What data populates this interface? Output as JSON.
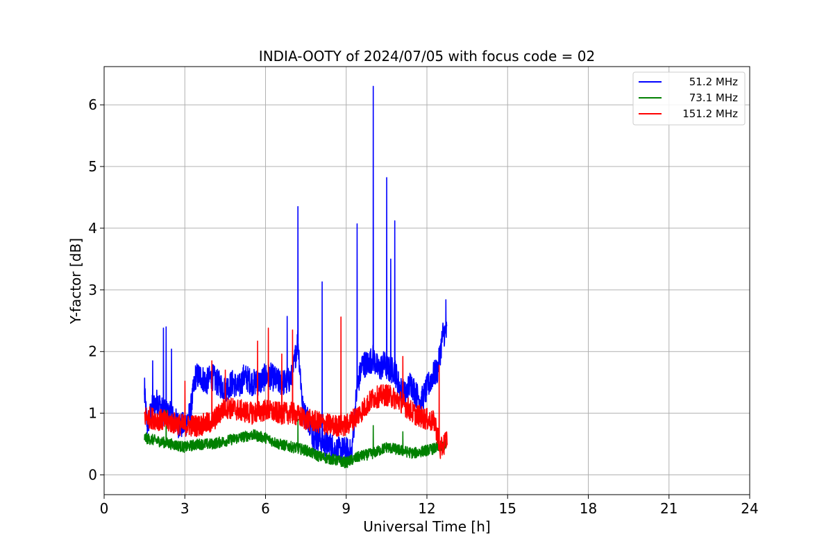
{
  "chart_data": {
    "type": "line",
    "title": "INDIA-OOTY of 2024/07/05 with focus code = 02",
    "xlabel": "Universal Time [h]",
    "ylabel": "Y-factor [dB]",
    "xlim": [
      0,
      24
    ],
    "ylim": [
      -0.32,
      6.62
    ],
    "xticks": [
      0,
      3,
      6,
      9,
      12,
      15,
      18,
      21,
      24
    ],
    "yticks": [
      0,
      1,
      2,
      3,
      4,
      5,
      6
    ],
    "grid": true,
    "legend_position": "upper right",
    "series": [
      {
        "name": "  51.2 MHz",
        "color": "#0000ff",
        "x": [
          1.5,
          1.6,
          1.8,
          2.0,
          2.2,
          2.4,
          2.6,
          2.8,
          3.0,
          3.2,
          3.4,
          3.6,
          3.8,
          4.0,
          4.2,
          4.5,
          4.8,
          5.0,
          5.2,
          5.5,
          5.8,
          6.0,
          6.2,
          6.5,
          6.8,
          7.0,
          7.2,
          7.4,
          7.6,
          7.8,
          8.0,
          8.2,
          8.4,
          8.6,
          8.8,
          9.0,
          9.2,
          9.4,
          9.6,
          9.8,
          10.0,
          10.2,
          10.4,
          10.6,
          10.8,
          11.0,
          11.2,
          11.4,
          11.6,
          11.8,
          12.0,
          12.2,
          12.4,
          12.6,
          12.75
        ],
        "y": [
          1.3,
          0.8,
          1.1,
          1.2,
          1.0,
          1.0,
          0.9,
          0.8,
          0.8,
          1.0,
          1.6,
          1.6,
          1.5,
          1.6,
          1.5,
          1.4,
          1.5,
          1.4,
          1.6,
          1.5,
          1.5,
          1.6,
          1.6,
          1.5,
          1.5,
          1.6,
          2.2,
          1.0,
          0.9,
          0.6,
          0.6,
          0.5,
          0.5,
          0.4,
          0.4,
          0.4,
          0.35,
          1.4,
          1.8,
          1.8,
          1.9,
          1.7,
          1.8,
          1.7,
          1.7,
          1.4,
          1.3,
          1.5,
          1.3,
          1.2,
          1.4,
          1.6,
          1.7,
          2.3,
          2.3
        ],
        "spikes": [
          {
            "x": 1.5,
            "y": 1.57
          },
          {
            "x": 1.8,
            "y": 1.85
          },
          {
            "x": 2.2,
            "y": 2.38
          },
          {
            "x": 2.3,
            "y": 2.4
          },
          {
            "x": 2.5,
            "y": 2.04
          },
          {
            "x": 6.8,
            "y": 2.57
          },
          {
            "x": 7.2,
            "y": 4.35
          },
          {
            "x": 8.1,
            "y": 3.13
          },
          {
            "x": 9.4,
            "y": 4.07
          },
          {
            "x": 10.0,
            "y": 6.3
          },
          {
            "x": 10.5,
            "y": 4.82
          },
          {
            "x": 10.65,
            "y": 3.5
          },
          {
            "x": 10.8,
            "y": 4.12
          },
          {
            "x": 12.7,
            "y": 2.84
          }
        ]
      },
      {
        "name": "  73.1 MHz",
        "color": "#008000",
        "x": [
          1.5,
          2.0,
          2.5,
          3.0,
          3.5,
          4.0,
          4.5,
          5.0,
          5.5,
          6.0,
          6.5,
          7.0,
          7.5,
          8.0,
          8.5,
          9.0,
          9.5,
          10.0,
          10.5,
          11.0,
          11.5,
          12.0,
          12.5,
          12.75
        ],
        "y": [
          0.6,
          0.55,
          0.5,
          0.45,
          0.5,
          0.5,
          0.55,
          0.6,
          0.65,
          0.6,
          0.5,
          0.45,
          0.4,
          0.3,
          0.25,
          0.2,
          0.3,
          0.35,
          0.45,
          0.4,
          0.35,
          0.4,
          0.45,
          0.5
        ],
        "spikes": [
          {
            "x": 2.3,
            "y": 1.05
          },
          {
            "x": 7.2,
            "y": 0.9
          },
          {
            "x": 10.0,
            "y": 0.8
          },
          {
            "x": 11.1,
            "y": 0.7
          },
          {
            "x": 12.4,
            "y": 0.55
          }
        ]
      },
      {
        "name": "151.2 MHz",
        "color": "#ff0000",
        "x": [
          1.5,
          2.0,
          2.5,
          3.0,
          3.5,
          4.0,
          4.5,
          5.0,
          5.5,
          6.0,
          6.5,
          7.0,
          7.5,
          8.0,
          8.5,
          9.0,
          9.5,
          10.0,
          10.5,
          11.0,
          11.5,
          12.0,
          12.3,
          12.5,
          12.75
        ],
        "y": [
          0.95,
          0.9,
          0.85,
          0.8,
          0.8,
          0.85,
          1.1,
          1.05,
          1.0,
          1.05,
          1.0,
          1.0,
          0.9,
          0.85,
          0.8,
          0.8,
          1.0,
          1.25,
          1.3,
          1.2,
          1.0,
          0.9,
          0.85,
          0.4,
          0.6
        ],
        "spikes": [
          {
            "x": 3.0,
            "y": 1.52
          },
          {
            "x": 4.0,
            "y": 1.85
          },
          {
            "x": 4.5,
            "y": 1.7
          },
          {
            "x": 5.7,
            "y": 2.17
          },
          {
            "x": 6.1,
            "y": 2.38
          },
          {
            "x": 6.6,
            "y": 1.96
          },
          {
            "x": 7.0,
            "y": 2.35
          },
          {
            "x": 8.8,
            "y": 2.56
          },
          {
            "x": 11.1,
            "y": 1.92
          },
          {
            "x": 12.45,
            "y": 1.78
          }
        ]
      }
    ]
  }
}
